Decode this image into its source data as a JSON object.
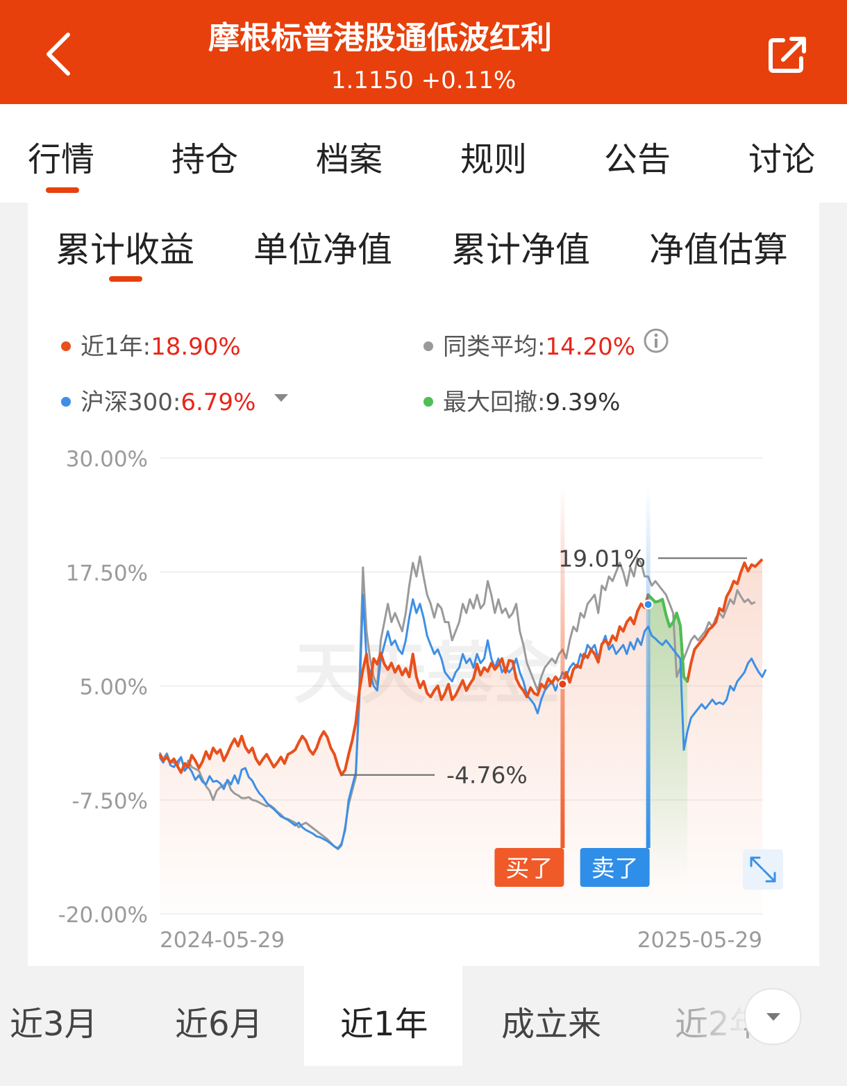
{
  "header": {
    "title": "摩根标普港股通低波红利",
    "subtitle": "1.1150 +0.11%",
    "back_icon": "chevron-left-icon",
    "share_icon": "share-external-icon"
  },
  "tabs": [
    {
      "label": "行情",
      "active": true
    },
    {
      "label": "持仓"
    },
    {
      "label": "档案"
    },
    {
      "label": "规则"
    },
    {
      "label": "公告"
    },
    {
      "label": "讨论"
    }
  ],
  "subtabs": [
    {
      "label": "累计收益",
      "active": true
    },
    {
      "label": "单位净值"
    },
    {
      "label": "累计净值"
    },
    {
      "label": "净值估算"
    }
  ],
  "legend": {
    "fund": {
      "label": "近1年:",
      "value": "18.90%",
      "color": "#e8501c"
    },
    "peer": {
      "label": "同类平均:",
      "value": "14.20%",
      "color": "#9a9a9a"
    },
    "index": {
      "label": "沪深300:",
      "value": "6.79%",
      "color": "#3d8fe6"
    },
    "drawdown": {
      "label": "最大回撤:",
      "value": "9.39%",
      "color": "#4cbf55"
    }
  },
  "chart_data": {
    "type": "line",
    "x_range": [
      "2024-05-29",
      "2025-05-29"
    ],
    "x_tick_labels": [
      "2024-05-29",
      "2025-05-29"
    ],
    "ylim": [
      -20,
      30
    ],
    "y_tick_labels": [
      "30.00%",
      "17.50%",
      "5.00%",
      "-7.50%",
      "-20.00%"
    ],
    "y_ticks": [
      30,
      17.5,
      5,
      -7.5,
      -20
    ],
    "grid": true,
    "series": [
      {
        "name": "近1年",
        "color": "#e8501c",
        "values": [
          -2.5,
          -3.2,
          -2.8,
          -3.4,
          -3.0,
          -3.8,
          -4.5,
          -3.5,
          -3.9,
          -2.6,
          -3.2,
          -4.0,
          -3.3,
          -2.2,
          -3.0,
          -1.8,
          -2.4,
          -2.0,
          -3.2,
          -2.4,
          -1.5,
          -0.8,
          -1.6,
          -0.5,
          -1.7,
          -2.3,
          -1.8,
          -3.0,
          -3.6,
          -3.0,
          -2.5,
          -3.2,
          -3.9,
          -3.4,
          -2.8,
          -3.5,
          -2.5,
          -2.3,
          -2.0,
          -1.2,
          -0.5,
          -1.0,
          -2.0,
          -2.5,
          -1.8,
          -0.7,
          0.0,
          -0.6,
          -1.8,
          -2.5,
          -3.8,
          -4.76,
          -4.2,
          -2.5,
          -1.0,
          1.0,
          4.5,
          6.8,
          8.5,
          5.0,
          8.0,
          7.4,
          8.6,
          7.4,
          6.8,
          7.5,
          6.5,
          7.2,
          6.2,
          6.9,
          6.0,
          8.5,
          6.0,
          4.8,
          5.5,
          4.2,
          3.8,
          4.5,
          5.0,
          3.5,
          4.2,
          5.2,
          3.5,
          4.0,
          4.8,
          5.6,
          4.5,
          5.2,
          5.8,
          7.4,
          6.2,
          7.0,
          6.6,
          7.5,
          6.8,
          7.3,
          8.0,
          6.5,
          7.8,
          7.7,
          5.8,
          5.0,
          4.5,
          3.8,
          4.8,
          4.2,
          4.0,
          5.2,
          4.8,
          5.8,
          5.3,
          6.0,
          5.5,
          5.2,
          6.5,
          5.4,
          6.8,
          7.3,
          7.0,
          8.5,
          8.1,
          9.0,
          8.5,
          7.6,
          9.6,
          10.0,
          9.5,
          10.5,
          10.0,
          11.5,
          11.0,
          12.0,
          12.5,
          11.8,
          13.2,
          14.0,
          13.6,
          15.0,
          14.6,
          14.2,
          14.3,
          14.5,
          12.8,
          11.5,
          12.0,
          13.0,
          11.6,
          6.0,
          5.5,
          7.5,
          9.0,
          9.5,
          10.0,
          10.5,
          11.2,
          11.5,
          12.0,
          13.5,
          13.2,
          14.8,
          15.5,
          16.5,
          16.2,
          17.5,
          18.5,
          17.6,
          18.3,
          18.1,
          18.5,
          18.9
        ]
      },
      {
        "name": "同类平均",
        "color": "#9a9a9a",
        "values": [
          -2.3,
          -3.0,
          -2.4,
          -3.4,
          -3.4,
          -3.8,
          -2.8,
          -4.2,
          -3.2,
          -3.9,
          -4.1,
          -4.3,
          -5.2,
          -6.0,
          -6.5,
          -7.5,
          -6.5,
          -6.1,
          -5.9,
          -5.4,
          -6.4,
          -6.8,
          -7.0,
          -7.3,
          -7.3,
          -7.2,
          -7.5,
          -7.6,
          -7.8,
          -8.0,
          -8.2,
          -8.1,
          -8.4,
          -8.8,
          -9.1,
          -9.5,
          -9.6,
          -9.8,
          -10.0,
          -10.5,
          -10.2,
          -10.0,
          -10.3,
          -10.6,
          -10.9,
          -11.2,
          -11.5,
          -11.8,
          -12.2,
          -12.6,
          -12.9,
          -12.5,
          -10.5,
          -8.0,
          -6.5,
          -5.0,
          5.0,
          18.0,
          11.0,
          8.0,
          6.0,
          5.0,
          10.0,
          12.0,
          14.0,
          12.0,
          13.0,
          12.0,
          11.0,
          13.0,
          16.0,
          18.5,
          17.0,
          19.2,
          17.0,
          15.0,
          14.0,
          12.5,
          14.0,
          13.5,
          12.0,
          12.0,
          10.0,
          11.0,
          12.0,
          14.0,
          13.0,
          14.5,
          13.5,
          15.0,
          13.5,
          14.0,
          16.5,
          15.0,
          13.0,
          14.5,
          13.0,
          13.5,
          12.5,
          13.0,
          14.0,
          11.0,
          9.5,
          7.5,
          6.5,
          5.5,
          4.5,
          6.0,
          7.0,
          7.5,
          8.0,
          7.5,
          8.5,
          9.0,
          8.0,
          10.0,
          11.5,
          11.0,
          13.0,
          12.5,
          14.0,
          14.5,
          15.0,
          13.0,
          16.0,
          15.5,
          17.0,
          16.5,
          17.5,
          18.5,
          17.5,
          16.0,
          18.0,
          17.0,
          19.0,
          18.5,
          17.0,
          17.0,
          16.0,
          16.5,
          16.0,
          15.5,
          15.0,
          14.0,
          13.0,
          6.0,
          7.0,
          8.0,
          9.0,
          10.0,
          10.5,
          10.0,
          10.5,
          11.0,
          12.0,
          11.5,
          12.5,
          13.0,
          12.5,
          13.5,
          14.5,
          14.0,
          15.5,
          14.8,
          14.2,
          14.5,
          14.0,
          14.2
        ]
      },
      {
        "name": "沪深300",
        "color": "#3d8fe6",
        "values": [
          -2.8,
          -3.4,
          -2.5,
          -3.7,
          -3.9,
          -3.3,
          -2.8,
          -4.3,
          -3.8,
          -4.4,
          -5.3,
          -4.8,
          -5.5,
          -5.8,
          -4.9,
          -5.5,
          -5.4,
          -5.7,
          -6.3,
          -5.3,
          -5.8,
          -4.8,
          -5.7,
          -4.2,
          -4.0,
          -5.0,
          -5.4,
          -6.2,
          -6.8,
          -7.2,
          -7.8,
          -8.2,
          -8.5,
          -8.9,
          -9.3,
          -9.5,
          -9.7,
          -10.0,
          -10.3,
          -10.0,
          -10.5,
          -10.8,
          -11.0,
          -11.2,
          -11.5,
          -11.6,
          -11.8,
          -12.0,
          -12.3,
          -12.6,
          -12.8,
          -12.3,
          -10.8,
          -7.5,
          -6.0,
          -4.5,
          3.5,
          15.0,
          8.0,
          6.5,
          5.0,
          4.5,
          8.0,
          9.5,
          11.0,
          9.5,
          10.0,
          9.0,
          8.5,
          10.0,
          12.5,
          14.5,
          13.0,
          14.0,
          12.5,
          10.5,
          9.5,
          8.5,
          9.0,
          8.0,
          6.5,
          6.0,
          5.5,
          6.5,
          7.0,
          8.5,
          7.5,
          8.0,
          7.0,
          8.5,
          7.5,
          8.0,
          10.0,
          8.0,
          7.0,
          8.0,
          6.5,
          7.0,
          6.5,
          7.0,
          8.0,
          6.5,
          5.5,
          4.0,
          3.5,
          3.0,
          2.0,
          3.5,
          4.5,
          5.0,
          5.5,
          4.5,
          5.5,
          6.5,
          6.0,
          7.0,
          7.5,
          7.0,
          8.5,
          8.0,
          9.5,
          9.0,
          9.5,
          8.0,
          9.5,
          10.5,
          9.0,
          9.5,
          8.5,
          9.0,
          9.5,
          8.5,
          9.8,
          9.0,
          10.2,
          9.5,
          11.0,
          11.5,
          10.5,
          10.2,
          9.8,
          9.5,
          10.0,
          9.5,
          9.0,
          8.5,
          8.0,
          -2.0,
          0.0,
          1.5,
          2.0,
          2.5,
          3.0,
          2.5,
          3.0,
          3.5,
          3.0,
          3.2,
          3.0,
          3.5,
          5.0,
          4.5,
          5.5,
          6.0,
          6.5,
          7.5,
          8.0,
          7.2,
          6.5,
          6.0,
          6.8
        ]
      }
    ],
    "annotations": [
      {
        "text": "19.01%",
        "x": "2025-03-17",
        "y": 19.01
      },
      {
        "text": "-4.76%",
        "x": "2024-09-04",
        "y": -4.76
      }
    ],
    "markers": [
      {
        "label": "买了",
        "color": "#f05a28"
      },
      {
        "label": "卖了",
        "color": "#2f8ee8"
      }
    ],
    "drawdown_color": "#4cbf55",
    "watermark": "天天基金"
  },
  "periods": [
    {
      "label": "近3月"
    },
    {
      "label": "近6月"
    },
    {
      "label": "近1年",
      "active": true
    },
    {
      "label": "成立来"
    },
    {
      "label": "近2年"
    }
  ],
  "more_icon": "chevron-down-icon",
  "expand_icon": "expand-icon"
}
